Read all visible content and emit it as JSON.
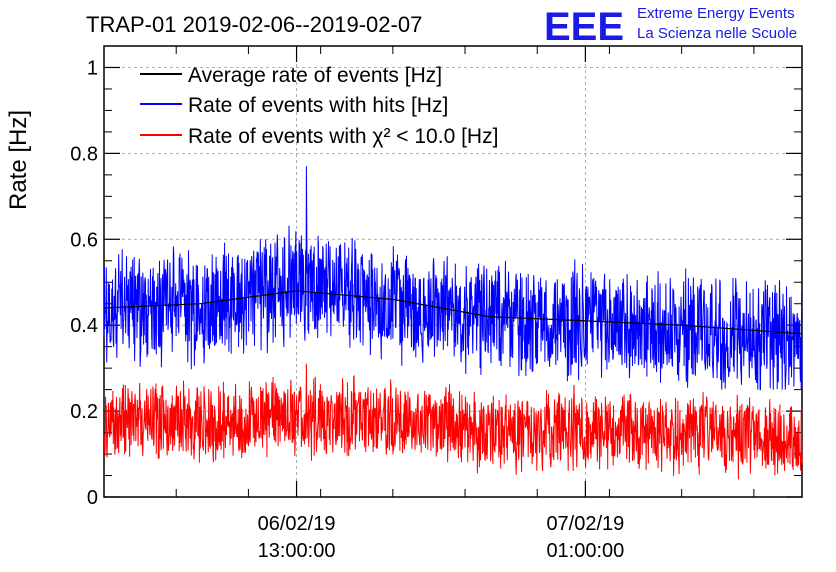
{
  "header": {
    "title": "TRAP-01 2019-02-06--2019-02-07",
    "logo_mark": "EEE",
    "logo_line1": "Extreme Energy Events",
    "logo_line2": "La Scienza nelle Scuole",
    "logo_color": "#1a1ae6"
  },
  "chart_data": {
    "type": "line",
    "title": "TRAP-01 2019-02-06--2019-02-07",
    "ylabel": "Rate [Hz]",
    "xlabel": "",
    "ylim": [
      0,
      1.05
    ],
    "x_start": "2019-02-06 05:00:00",
    "x_end": "2019-02-07 10:00:00",
    "yticks": [
      0,
      0.2,
      0.4,
      0.6,
      0.8,
      1
    ],
    "ytick_labels": [
      "0",
      "0.2",
      "0.4",
      "0.6",
      "0.8",
      "1"
    ],
    "xticks": [
      {
        "date": "06/02/19",
        "time": "13:00:00",
        "at": "2019-02-06 13:00:00"
      },
      {
        "date": "07/02/19",
        "time": "01:00:00",
        "at": "2019-02-07 01:00:00"
      }
    ],
    "grid": true,
    "legend_position": "top-left",
    "series": [
      {
        "name": "Average rate of events [Hz]",
        "color": "#000000",
        "x": [
          "2019-02-06 05:00",
          "2019-02-06 09:00",
          "2019-02-06 13:00",
          "2019-02-06 17:00",
          "2019-02-06 21:00",
          "2019-02-07 01:00",
          "2019-02-07 05:00",
          "2019-02-07 10:00"
        ],
        "values": [
          0.44,
          0.45,
          0.48,
          0.46,
          0.42,
          0.41,
          0.4,
          0.38
        ]
      },
      {
        "name": "Rate of events with hits [Hz]",
        "color": "#0000ff",
        "x": [
          "2019-02-06 05:00",
          "2019-02-06 07:00",
          "2019-02-06 09:00",
          "2019-02-06 11:00",
          "2019-02-06 13:00",
          "2019-02-06 15:00",
          "2019-02-06 17:00",
          "2019-02-06 19:00",
          "2019-02-06 21:00",
          "2019-02-06 23:00",
          "2019-02-07 01:00",
          "2019-02-07 03:00",
          "2019-02-07 05:00",
          "2019-02-07 07:00",
          "2019-02-07 10:00"
        ],
        "values": [
          0.43,
          0.44,
          0.43,
          0.46,
          0.5,
          0.47,
          0.45,
          0.44,
          0.42,
          0.4,
          0.41,
          0.4,
          0.39,
          0.38,
          0.36
        ],
        "band_low": 0.3,
        "band_high": 0.6,
        "peak": 0.77
      },
      {
        "name": "Rate of events with χ² < 10.0 [Hz]",
        "color": "#ff0000",
        "x": [
          "2019-02-06 05:00",
          "2019-02-06 07:00",
          "2019-02-06 09:00",
          "2019-02-06 11:00",
          "2019-02-06 13:00",
          "2019-02-06 15:00",
          "2019-02-06 17:00",
          "2019-02-06 19:00",
          "2019-02-06 21:00",
          "2019-02-06 23:00",
          "2019-02-07 01:00",
          "2019-02-07 03:00",
          "2019-02-07 05:00",
          "2019-02-07 07:00",
          "2019-02-07 10:00"
        ],
        "values": [
          0.17,
          0.18,
          0.17,
          0.18,
          0.19,
          0.18,
          0.18,
          0.17,
          0.15,
          0.15,
          0.16,
          0.15,
          0.15,
          0.14,
          0.13
        ],
        "band_low": 0.07,
        "band_high": 0.28,
        "peak": 0.31
      }
    ]
  }
}
